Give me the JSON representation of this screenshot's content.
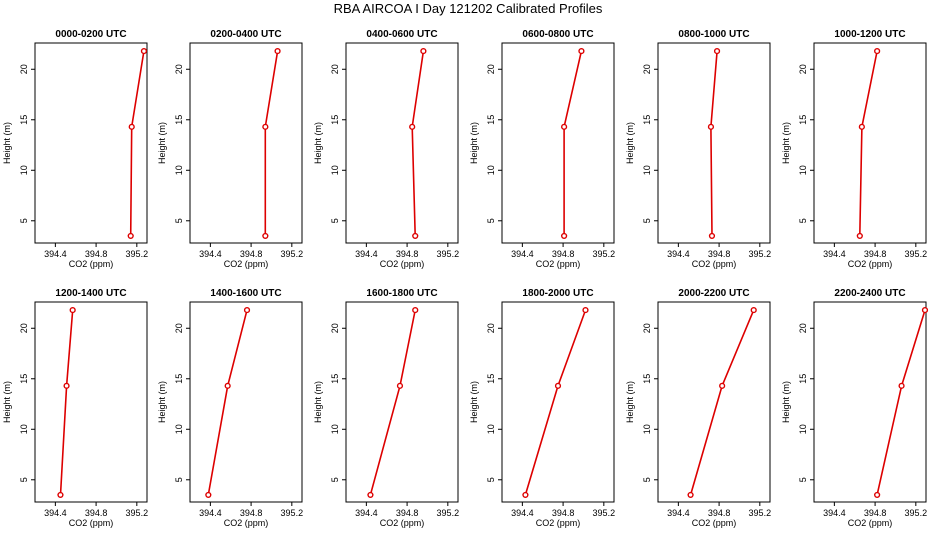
{
  "title": "RBA AIRCOA I  Day 121202  Calibrated Profiles",
  "colors": {
    "series": "#dd0000",
    "axis": "#000000"
  },
  "chart_data": [
    {
      "type": "line",
      "title": "0000-0200 UTC",
      "xlabel": "CO2 (ppm)",
      "ylabel": "Height (m)",
      "xlim": [
        394.2,
        395.3
      ],
      "ylim": [
        2.8,
        22.6
      ],
      "xticks": [
        394.4,
        394.8,
        395.2
      ],
      "yticks": [
        5,
        10,
        15,
        20
      ],
      "grid": false,
      "marker": "circle",
      "points": [
        {
          "x": 395.14,
          "y": 3.5
        },
        {
          "x": 395.15,
          "y": 14.3
        },
        {
          "x": 395.27,
          "y": 21.8
        }
      ]
    },
    {
      "type": "line",
      "title": "0200-0400 UTC",
      "xlabel": "CO2 (ppm)",
      "ylabel": "Height (m)",
      "xlim": [
        394.2,
        395.3
      ],
      "ylim": [
        2.8,
        22.6
      ],
      "xticks": [
        394.4,
        394.8,
        395.2
      ],
      "yticks": [
        5,
        10,
        15,
        20
      ],
      "grid": false,
      "marker": "circle",
      "points": [
        {
          "x": 394.94,
          "y": 3.5
        },
        {
          "x": 394.94,
          "y": 14.3
        },
        {
          "x": 395.06,
          "y": 21.8
        }
      ]
    },
    {
      "type": "line",
      "title": "0400-0600 UTC",
      "xlabel": "CO2 (ppm)",
      "ylabel": "Height (m)",
      "xlim": [
        394.2,
        395.3
      ],
      "ylim": [
        2.8,
        22.6
      ],
      "xticks": [
        394.4,
        394.8,
        395.2
      ],
      "yticks": [
        5,
        10,
        15,
        20
      ],
      "grid": false,
      "marker": "circle",
      "points": [
        {
          "x": 394.88,
          "y": 3.5
        },
        {
          "x": 394.85,
          "y": 14.3
        },
        {
          "x": 394.96,
          "y": 21.8
        }
      ]
    },
    {
      "type": "line",
      "title": "0600-0800 UTC",
      "xlabel": "CO2 (ppm)",
      "ylabel": "Height (m)",
      "xlim": [
        394.2,
        395.3
      ],
      "ylim": [
        2.8,
        22.6
      ],
      "xticks": [
        394.4,
        394.8,
        395.2
      ],
      "yticks": [
        5,
        10,
        15,
        20
      ],
      "grid": false,
      "marker": "circle",
      "points": [
        {
          "x": 394.81,
          "y": 3.5
        },
        {
          "x": 394.81,
          "y": 14.3
        },
        {
          "x": 394.98,
          "y": 21.8
        }
      ]
    },
    {
      "type": "line",
      "title": "0800-1000 UTC",
      "xlabel": "CO2 (ppm)",
      "ylabel": "Height (m)",
      "xlim": [
        394.2,
        395.3
      ],
      "ylim": [
        2.8,
        22.6
      ],
      "xticks": [
        394.4,
        394.8,
        395.2
      ],
      "yticks": [
        5,
        10,
        15,
        20
      ],
      "grid": false,
      "marker": "circle",
      "points": [
        {
          "x": 394.73,
          "y": 3.5
        },
        {
          "x": 394.72,
          "y": 14.3
        },
        {
          "x": 394.78,
          "y": 21.8
        }
      ]
    },
    {
      "type": "line",
      "title": "1000-1200 UTC",
      "xlabel": "CO2 (ppm)",
      "ylabel": "Height (m)",
      "xlim": [
        394.2,
        395.3
      ],
      "ylim": [
        2.8,
        22.6
      ],
      "xticks": [
        394.4,
        394.8,
        395.2
      ],
      "yticks": [
        5,
        10,
        15,
        20
      ],
      "grid": false,
      "marker": "circle",
      "points": [
        {
          "x": 394.65,
          "y": 3.5
        },
        {
          "x": 394.67,
          "y": 14.3
        },
        {
          "x": 394.82,
          "y": 21.8
        }
      ]
    },
    {
      "type": "line",
      "title": "1200-1400 UTC",
      "xlabel": "CO2 (ppm)",
      "ylabel": "Height (m)",
      "xlim": [
        394.2,
        395.3
      ],
      "ylim": [
        2.8,
        22.6
      ],
      "xticks": [
        394.4,
        394.8,
        395.2
      ],
      "yticks": [
        5,
        10,
        15,
        20
      ],
      "grid": false,
      "marker": "circle",
      "points": [
        {
          "x": 394.45,
          "y": 3.5
        },
        {
          "x": 394.51,
          "y": 14.3
        },
        {
          "x": 394.57,
          "y": 21.8
        }
      ]
    },
    {
      "type": "line",
      "title": "1400-1600 UTC",
      "xlabel": "CO2 (ppm)",
      "ylabel": "Height (m)",
      "xlim": [
        394.2,
        395.3
      ],
      "ylim": [
        2.8,
        22.6
      ],
      "xticks": [
        394.4,
        394.8,
        395.2
      ],
      "yticks": [
        5,
        10,
        15,
        20
      ],
      "grid": false,
      "marker": "circle",
      "points": [
        {
          "x": 394.38,
          "y": 3.5
        },
        {
          "x": 394.57,
          "y": 14.3
        },
        {
          "x": 394.76,
          "y": 21.8
        }
      ]
    },
    {
      "type": "line",
      "title": "1600-1800 UTC",
      "xlabel": "CO2 (ppm)",
      "ylabel": "Height (m)",
      "xlim": [
        394.2,
        395.3
      ],
      "ylim": [
        2.8,
        22.6
      ],
      "xticks": [
        394.4,
        394.8,
        395.2
      ],
      "yticks": [
        5,
        10,
        15,
        20
      ],
      "grid": false,
      "marker": "circle",
      "points": [
        {
          "x": 394.44,
          "y": 3.5
        },
        {
          "x": 394.73,
          "y": 14.3
        },
        {
          "x": 394.88,
          "y": 21.8
        }
      ]
    },
    {
      "type": "line",
      "title": "1800-2000 UTC",
      "xlabel": "CO2 (ppm)",
      "ylabel": "Height (m)",
      "xlim": [
        394.2,
        395.3
      ],
      "ylim": [
        2.8,
        22.6
      ],
      "xticks": [
        394.4,
        394.8,
        395.2
      ],
      "yticks": [
        5,
        10,
        15,
        20
      ],
      "grid": false,
      "marker": "circle",
      "points": [
        {
          "x": 394.43,
          "y": 3.5
        },
        {
          "x": 394.75,
          "y": 14.3
        },
        {
          "x": 395.02,
          "y": 21.8
        }
      ]
    },
    {
      "type": "line",
      "title": "2000-2200 UTC",
      "xlabel": "CO2 (ppm)",
      "ylabel": "Height (m)",
      "xlim": [
        394.2,
        395.3
      ],
      "ylim": [
        2.8,
        22.6
      ],
      "xticks": [
        394.4,
        394.8,
        395.2
      ],
      "yticks": [
        5,
        10,
        15,
        20
      ],
      "grid": false,
      "marker": "circle",
      "points": [
        {
          "x": 394.52,
          "y": 3.5
        },
        {
          "x": 394.83,
          "y": 14.3
        },
        {
          "x": 395.14,
          "y": 21.8
        }
      ]
    },
    {
      "type": "line",
      "title": "2200-2400 UTC",
      "xlabel": "CO2 (ppm)",
      "ylabel": "Height (m)",
      "xlim": [
        394.2,
        395.3
      ],
      "ylim": [
        2.8,
        22.6
      ],
      "xticks": [
        394.4,
        394.8,
        395.2
      ],
      "yticks": [
        5,
        10,
        15,
        20
      ],
      "grid": false,
      "marker": "circle",
      "points": [
        {
          "x": 394.82,
          "y": 3.5
        },
        {
          "x": 395.06,
          "y": 14.3
        },
        {
          "x": 395.29,
          "y": 21.8
        }
      ]
    }
  ]
}
